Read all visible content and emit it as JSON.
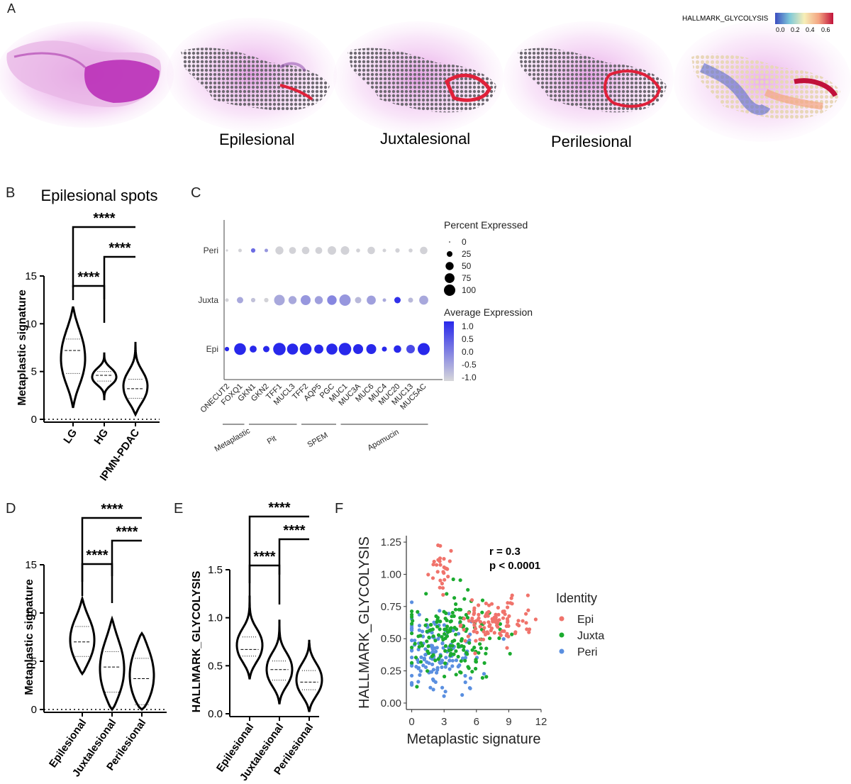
{
  "panels": {
    "a": "A",
    "b": "B",
    "c": "C",
    "d": "D",
    "e": "E",
    "f": "F"
  },
  "panel_a": {
    "region_labels": [
      "Epilesional",
      "Juxtalesional",
      "Perilesional"
    ],
    "colorbar": {
      "title": "HALLMARK_GLYCOLYSIS",
      "ticks": [
        "0.0",
        "0.2",
        "0.4",
        "0.6"
      ],
      "range": [
        0,
        0.7
      ]
    },
    "colors": {
      "tissue": "#c23cc2",
      "spot": "#7a6f7a",
      "highlight": "#e0203a"
    }
  },
  "chart_data": [
    {
      "id": "B",
      "type": "violin",
      "title": "Epilesional spots",
      "categories": [
        "LG",
        "HG",
        "IPMN-PDAC"
      ],
      "ylabel": "Metaplastic signature",
      "ylim": [
        0,
        15
      ],
      "yticks": [
        0,
        5,
        10,
        15
      ],
      "medians": [
        7.2,
        4.6,
        3.2
      ],
      "quartiles": [
        [
          4.8,
          8.4
        ],
        [
          4.0,
          5.0
        ],
        [
          2.2,
          4.2
        ]
      ],
      "ranges": [
        [
          1.2,
          11.8
        ],
        [
          2.0,
          7.0
        ],
        [
          0.5,
          8.1
        ]
      ],
      "comparisons": [
        {
          "pair": [
            0,
            2
          ],
          "label": "****"
        },
        {
          "pair": [
            1,
            2
          ],
          "label": "****"
        },
        {
          "pair": [
            0,
            1
          ],
          "label": "****"
        }
      ],
      "refline": 0
    },
    {
      "id": "C",
      "type": "dot",
      "genes": [
        "ONECUT2",
        "FOXQ1",
        "GKN1",
        "GKN2",
        "TFF1",
        "MUCL3",
        "TFF2",
        "AQP5",
        "PGC",
        "MUC1",
        "MUC3A",
        "MUC6",
        "MUC4",
        "MUC20",
        "MUC13",
        "MUC5AC"
      ],
      "rows": [
        "Peri",
        "Juxta",
        "Epi"
      ],
      "gene_groups": [
        {
          "name": "Metaplastic",
          "from": 0,
          "to": 1
        },
        {
          "name": "Pit",
          "from": 2,
          "to": 5
        },
        {
          "name": "SPEM",
          "from": 6,
          "to": 8
        },
        {
          "name": "Apomucin",
          "from": 9,
          "to": 15
        }
      ],
      "pct": [
        [
          3,
          8,
          12,
          8,
          40,
          30,
          35,
          30,
          45,
          45,
          10,
          35,
          8,
          12,
          10,
          35
        ],
        [
          8,
          25,
          12,
          12,
          70,
          40,
          60,
          40,
          55,
          80,
          25,
          50,
          8,
          25,
          15,
          50
        ],
        [
          12,
          85,
          30,
          25,
          95,
          75,
          85,
          50,
          75,
          95,
          60,
          60,
          15,
          35,
          45,
          90
        ]
      ],
      "avg": [
        [
          -1,
          -1,
          0.2,
          -0.3,
          -1,
          -1,
          -1,
          -1,
          -1,
          -1,
          -1,
          -1,
          -1,
          -1,
          -1,
          -1
        ],
        [
          -1,
          -0.5,
          -0.8,
          -1,
          -0.5,
          -0.5,
          -0.3,
          -0.4,
          -0.1,
          -0.3,
          -0.7,
          -0.4,
          -0.5,
          0.9,
          -0.7,
          -0.5
        ],
        [
          1,
          1,
          1,
          1,
          1,
          1,
          1,
          1,
          1,
          1,
          1,
          1,
          1,
          1,
          0.6,
          1
        ]
      ],
      "size_legend": {
        "title": "Percent Expressed",
        "values": [
          0,
          25,
          50,
          75,
          100
        ]
      },
      "color_legend": {
        "title": "Average Expression",
        "ticks": [
          "1.0",
          "0.5",
          "0.0",
          "-0.5",
          "-1.0"
        ]
      }
    },
    {
      "id": "D",
      "type": "violin",
      "categories": [
        "Epilesional",
        "Juxtalesional",
        "Perilesional"
      ],
      "ylabel": "Metaplastic signature",
      "ylim": [
        0,
        15
      ],
      "yticks": [
        0,
        5,
        10,
        15
      ],
      "medians": [
        7.0,
        4.4,
        3.2
      ],
      "quartiles": [
        [
          5.5,
          8.6
        ],
        [
          1.8,
          6.0
        ],
        [
          0.5,
          5.3
        ]
      ],
      "ranges": [
        [
          3.7,
          11.5
        ],
        [
          0.0,
          9.4
        ],
        [
          0.0,
          7.9
        ]
      ],
      "comparisons": [
        {
          "pair": [
            0,
            2
          ],
          "label": "****"
        },
        {
          "pair": [
            1,
            2
          ],
          "label": "****"
        },
        {
          "pair": [
            0,
            1
          ],
          "label": "****"
        }
      ],
      "refline": 0
    },
    {
      "id": "E",
      "type": "violin",
      "categories": [
        "Epilesional",
        "Juxtalesional",
        "Perilesional"
      ],
      "ylabel": "HALLMARK_GLYCOLYSIS",
      "ylim": [
        0,
        1.5
      ],
      "yticks": [
        "0.0",
        "0.5",
        "1.0",
        "1.5"
      ],
      "medians": [
        0.67,
        0.46,
        0.33
      ],
      "quartiles": [
        [
          0.6,
          0.8
        ],
        [
          0.35,
          0.55
        ],
        [
          0.25,
          0.45
        ]
      ],
      "ranges": [
        [
          0.36,
          1.23
        ],
        [
          0.1,
          0.98
        ],
        [
          0.02,
          0.77
        ]
      ],
      "comparisons": [
        {
          "pair": [
            0,
            2
          ],
          "label": "****"
        },
        {
          "pair": [
            1,
            2
          ],
          "label": "****"
        },
        {
          "pair": [
            0,
            1
          ],
          "label": "****"
        }
      ]
    },
    {
      "id": "F",
      "type": "scatter",
      "xlabel": "Metaplastic signature",
      "ylabel": "HALLMARK_GLYCOLYSIS",
      "xlim": [
        -0.5,
        12
      ],
      "ylim": [
        -0.05,
        1.3
      ],
      "xticks": [
        0,
        3,
        6,
        9,
        12
      ],
      "yticks": [
        "0.00",
        "0.25",
        "0.50",
        "0.75",
        "1.00",
        "1.25"
      ],
      "annotation": [
        "r = 0.3",
        "p < 0.0001"
      ],
      "legend": {
        "title": "Identity",
        "position": "right"
      },
      "series": [
        {
          "name": "Epi",
          "color": "#f0736b",
          "center": [
            7.5,
            0.63
          ],
          "spread": [
            1.5,
            0.08
          ],
          "n": 110,
          "cluster": {
            "center": [
              2.8,
              1.03
            ],
            "spread": [
              0.5,
              0.1
            ],
            "n": 28
          }
        },
        {
          "name": "Juxta",
          "color": "#1bab2f",
          "center": [
            3.8,
            0.52
          ],
          "spread": [
            2.2,
            0.15
          ],
          "n": 160
        },
        {
          "name": "Peri",
          "color": "#5a8fe0",
          "center": [
            2.3,
            0.37
          ],
          "spread": [
            1.8,
            0.15
          ],
          "n": 150
        }
      ]
    }
  ]
}
